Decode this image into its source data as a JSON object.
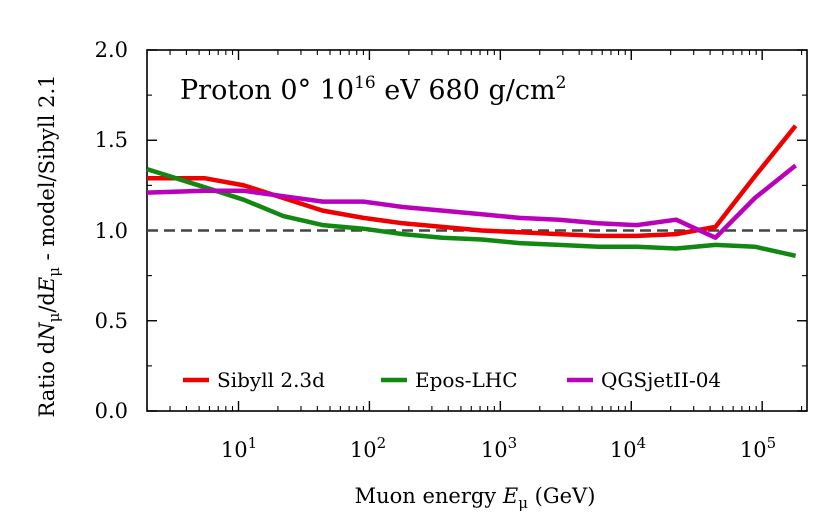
{
  "chart_data": {
    "type": "line",
    "annotation": {
      "particle": "Proton",
      "angle": "0°",
      "energy_mantissa": "10",
      "energy_exponent": "16",
      "energy_unit": "eV",
      "depth": "680",
      "depth_unit": "g/cm",
      "depth_exponent": "2"
    },
    "xlabel": {
      "prefix": "Muon energy",
      "symbol": "E",
      "subscript": "μ",
      "unit": "(GeV)"
    },
    "ylabel": {
      "ratio": "Ratio d",
      "n_symbol": "N",
      "n_sub": "μ",
      "slash_d": "/d",
      "e_symbol": "E",
      "e_sub": "μ",
      "suffix": " - model/Sibyll 2.1"
    },
    "x_scale": "log",
    "xlim": [
      2,
      220000
    ],
    "ylim": [
      0.0,
      2.0
    ],
    "y_ticks": [
      "0.0",
      "0.5",
      "1.0",
      "1.5",
      "2.0"
    ],
    "x_ticks": [
      {
        "value": 10,
        "base": "10",
        "exp": "1"
      },
      {
        "value": 100,
        "base": "10",
        "exp": "2"
      },
      {
        "value": 1000,
        "base": "10",
        "exp": "3"
      },
      {
        "value": 10000,
        "base": "10",
        "exp": "4"
      },
      {
        "value": 100000,
        "base": "10",
        "exp": "5"
      }
    ],
    "reference_line": {
      "y": 1.0,
      "style": "dashed",
      "color": "#444444"
    },
    "legend_position": "bottom",
    "series": [
      {
        "name": "Sibyll 2.3d",
        "color": "#ee0000",
        "x": [
          2,
          5.5,
          11,
          22,
          44,
          90,
          180,
          360,
          720,
          1400,
          2800,
          5600,
          11000,
          22000,
          44000,
          88000,
          180000
        ],
        "y": [
          1.29,
          1.29,
          1.25,
          1.18,
          1.11,
          1.07,
          1.04,
          1.02,
          1.0,
          0.99,
          0.98,
          0.97,
          0.97,
          0.98,
          1.02,
          1.3,
          1.58
        ]
      },
      {
        "name": "Epos-LHC",
        "color": "#118811",
        "x": [
          2,
          5.5,
          11,
          22,
          44,
          90,
          180,
          360,
          720,
          1400,
          2800,
          5600,
          11000,
          22000,
          44000,
          88000,
          180000
        ],
        "y": [
          1.34,
          1.24,
          1.17,
          1.08,
          1.03,
          1.01,
          0.98,
          0.96,
          0.95,
          0.93,
          0.92,
          0.91,
          0.91,
          0.9,
          0.92,
          0.91,
          0.86
        ]
      },
      {
        "name": "QGSjetII-04",
        "color": "#bb00bb",
        "x": [
          2,
          5.5,
          11,
          22,
          44,
          90,
          180,
          360,
          720,
          1400,
          2800,
          5600,
          11000,
          22000,
          44000,
          88000,
          180000
        ],
        "y": [
          1.21,
          1.22,
          1.22,
          1.19,
          1.16,
          1.16,
          1.13,
          1.11,
          1.09,
          1.07,
          1.06,
          1.04,
          1.03,
          1.06,
          0.96,
          1.18,
          1.36
        ]
      }
    ]
  }
}
